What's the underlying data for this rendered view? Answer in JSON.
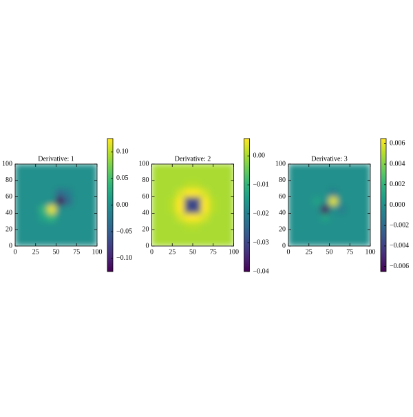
{
  "chart_data": [
    {
      "type": "heatmap",
      "title": "Derivative: 1",
      "colormap": "viridis",
      "x": [
        5,
        15,
        25,
        35,
        45,
        55,
        65,
        75,
        85,
        95
      ],
      "y": [
        5,
        15,
        25,
        35,
        45,
        55,
        65,
        75,
        85,
        95
      ],
      "z": [
        [
          0,
          0,
          0,
          0,
          0,
          0,
          0,
          0,
          0,
          0
        ],
        [
          0,
          0,
          0,
          0,
          0,
          0,
          0,
          0,
          0,
          0
        ],
        [
          0,
          0,
          0,
          0,
          0,
          0,
          0,
          0,
          0,
          0
        ],
        [
          0,
          0,
          0,
          0.02,
          0.04,
          0,
          0,
          0,
          0,
          0
        ],
        [
          0,
          0,
          0,
          0.04,
          0.12,
          0,
          0,
          0,
          0,
          0
        ],
        [
          0,
          0,
          0,
          0,
          0,
          -0.12,
          -0.04,
          0,
          0,
          0
        ],
        [
          0,
          0,
          0,
          0,
          0,
          -0.04,
          -0.02,
          0,
          0,
          0
        ],
        [
          0,
          0,
          0,
          0,
          0,
          0,
          0,
          0,
          0,
          0
        ],
        [
          0,
          0,
          0,
          0,
          0,
          0,
          0,
          0,
          0,
          0
        ],
        [
          0,
          0,
          0,
          0,
          0,
          0,
          0,
          0,
          0,
          0
        ]
      ],
      "xlim": [
        0,
        100
      ],
      "ylim": [
        0,
        100
      ],
      "xticks": [
        0,
        25,
        50,
        75,
        100
      ],
      "yticks": [
        0,
        20,
        40,
        60,
        80,
        100
      ],
      "zlim": [
        -0.125,
        0.125
      ],
      "zticks": [
        {
          "value": -0.1,
          "label": "−0.10"
        },
        {
          "value": -0.05,
          "label": "−0.05"
        },
        {
          "value": 0,
          "label": "0.00"
        },
        {
          "value": 0.05,
          "label": "0.05"
        },
        {
          "value": 0.1,
          "label": "0.10"
        }
      ]
    },
    {
      "type": "heatmap",
      "title": "Derivative: 2",
      "colormap": "viridis",
      "x": [
        5,
        15,
        25,
        35,
        45,
        55,
        65,
        75,
        85,
        95
      ],
      "y": [
        5,
        15,
        25,
        35,
        45,
        55,
        65,
        75,
        85,
        95
      ],
      "z": [
        [
          0,
          0,
          0,
          0,
          0,
          0,
          0,
          0,
          0,
          0
        ],
        [
          0,
          0,
          0,
          0,
          0,
          0,
          0,
          0,
          0,
          0
        ],
        [
          0,
          0,
          0,
          0,
          0.001,
          0.001,
          0,
          0,
          0,
          0
        ],
        [
          0,
          0,
          0,
          0.003,
          0.006,
          0.006,
          0.003,
          0,
          0,
          0
        ],
        [
          0,
          0,
          0.001,
          0.006,
          -0.03,
          -0.03,
          0.006,
          0.001,
          0,
          0
        ],
        [
          0,
          0,
          0.001,
          0.006,
          -0.03,
          -0.03,
          0.006,
          0.001,
          0,
          0
        ],
        [
          0,
          0,
          0,
          0.003,
          0.006,
          0.006,
          0.003,
          0,
          0,
          0
        ],
        [
          0,
          0,
          0,
          0,
          0.001,
          0.001,
          0,
          0,
          0,
          0
        ],
        [
          0,
          0,
          0,
          0,
          0,
          0,
          0,
          0,
          0,
          0
        ],
        [
          0,
          0,
          0,
          0,
          0,
          0,
          0,
          0,
          0,
          0
        ]
      ],
      "xlim": [
        0,
        100
      ],
      "ylim": [
        0,
        100
      ],
      "xticks": [
        0,
        25,
        50,
        75,
        100
      ],
      "yticks": [
        0,
        20,
        40,
        60,
        80,
        100
      ],
      "zlim": [
        -0.04,
        0.006
      ],
      "zticks": [
        {
          "value": -0.04,
          "label": "−0.04"
        },
        {
          "value": -0.03,
          "label": "−0.03"
        },
        {
          "value": -0.02,
          "label": "−0.02"
        },
        {
          "value": -0.01,
          "label": "−0.01"
        },
        {
          "value": 0,
          "label": "0.00"
        }
      ]
    },
    {
      "type": "heatmap",
      "title": "Derivative: 3",
      "colormap": "viridis",
      "x": [
        5,
        15,
        25,
        35,
        45,
        55,
        65,
        75,
        85,
        95
      ],
      "y": [
        5,
        15,
        25,
        35,
        45,
        55,
        65,
        75,
        85,
        95
      ],
      "z": [
        [
          0,
          0,
          0,
          0,
          0,
          0,
          0,
          0,
          0,
          0
        ],
        [
          0,
          0,
          0,
          0,
          0,
          0,
          0,
          0,
          0,
          0
        ],
        [
          0,
          0,
          0,
          0,
          0,
          0,
          0,
          0,
          0,
          0
        ],
        [
          0,
          0,
          0,
          0,
          0.001,
          0,
          0,
          0,
          0,
          0
        ],
        [
          0,
          0,
          0,
          0,
          -0.006,
          0,
          -0.001,
          0,
          0,
          0
        ],
        [
          0,
          0,
          0,
          0.001,
          0,
          0.006,
          0,
          0,
          0,
          0
        ],
        [
          0,
          0,
          0,
          0,
          0,
          -0.001,
          0,
          0,
          0,
          0
        ],
        [
          0,
          0,
          0,
          0,
          0,
          0,
          0,
          0,
          0,
          0
        ],
        [
          0,
          0,
          0,
          0,
          0,
          0,
          0,
          0,
          0,
          0
        ],
        [
          0,
          0,
          0,
          0,
          0,
          0,
          0,
          0,
          0,
          0
        ]
      ],
      "xlim": [
        0,
        100
      ],
      "ylim": [
        0,
        100
      ],
      "xticks": [
        0,
        25,
        50,
        75,
        100
      ],
      "yticks": [
        0,
        20,
        40,
        60,
        80,
        100
      ],
      "zlim": [
        -0.0065,
        0.0065
      ],
      "zticks": [
        {
          "value": -0.006,
          "label": "−0.006"
        },
        {
          "value": -0.004,
          "label": "−0.004"
        },
        {
          "value": -0.002,
          "label": "−0.002"
        },
        {
          "value": 0,
          "label": "0.000"
        },
        {
          "value": 0.002,
          "label": "0.002"
        },
        {
          "value": 0.004,
          "label": "0.004"
        },
        {
          "value": 0.006,
          "label": "0.006"
        }
      ]
    }
  ]
}
